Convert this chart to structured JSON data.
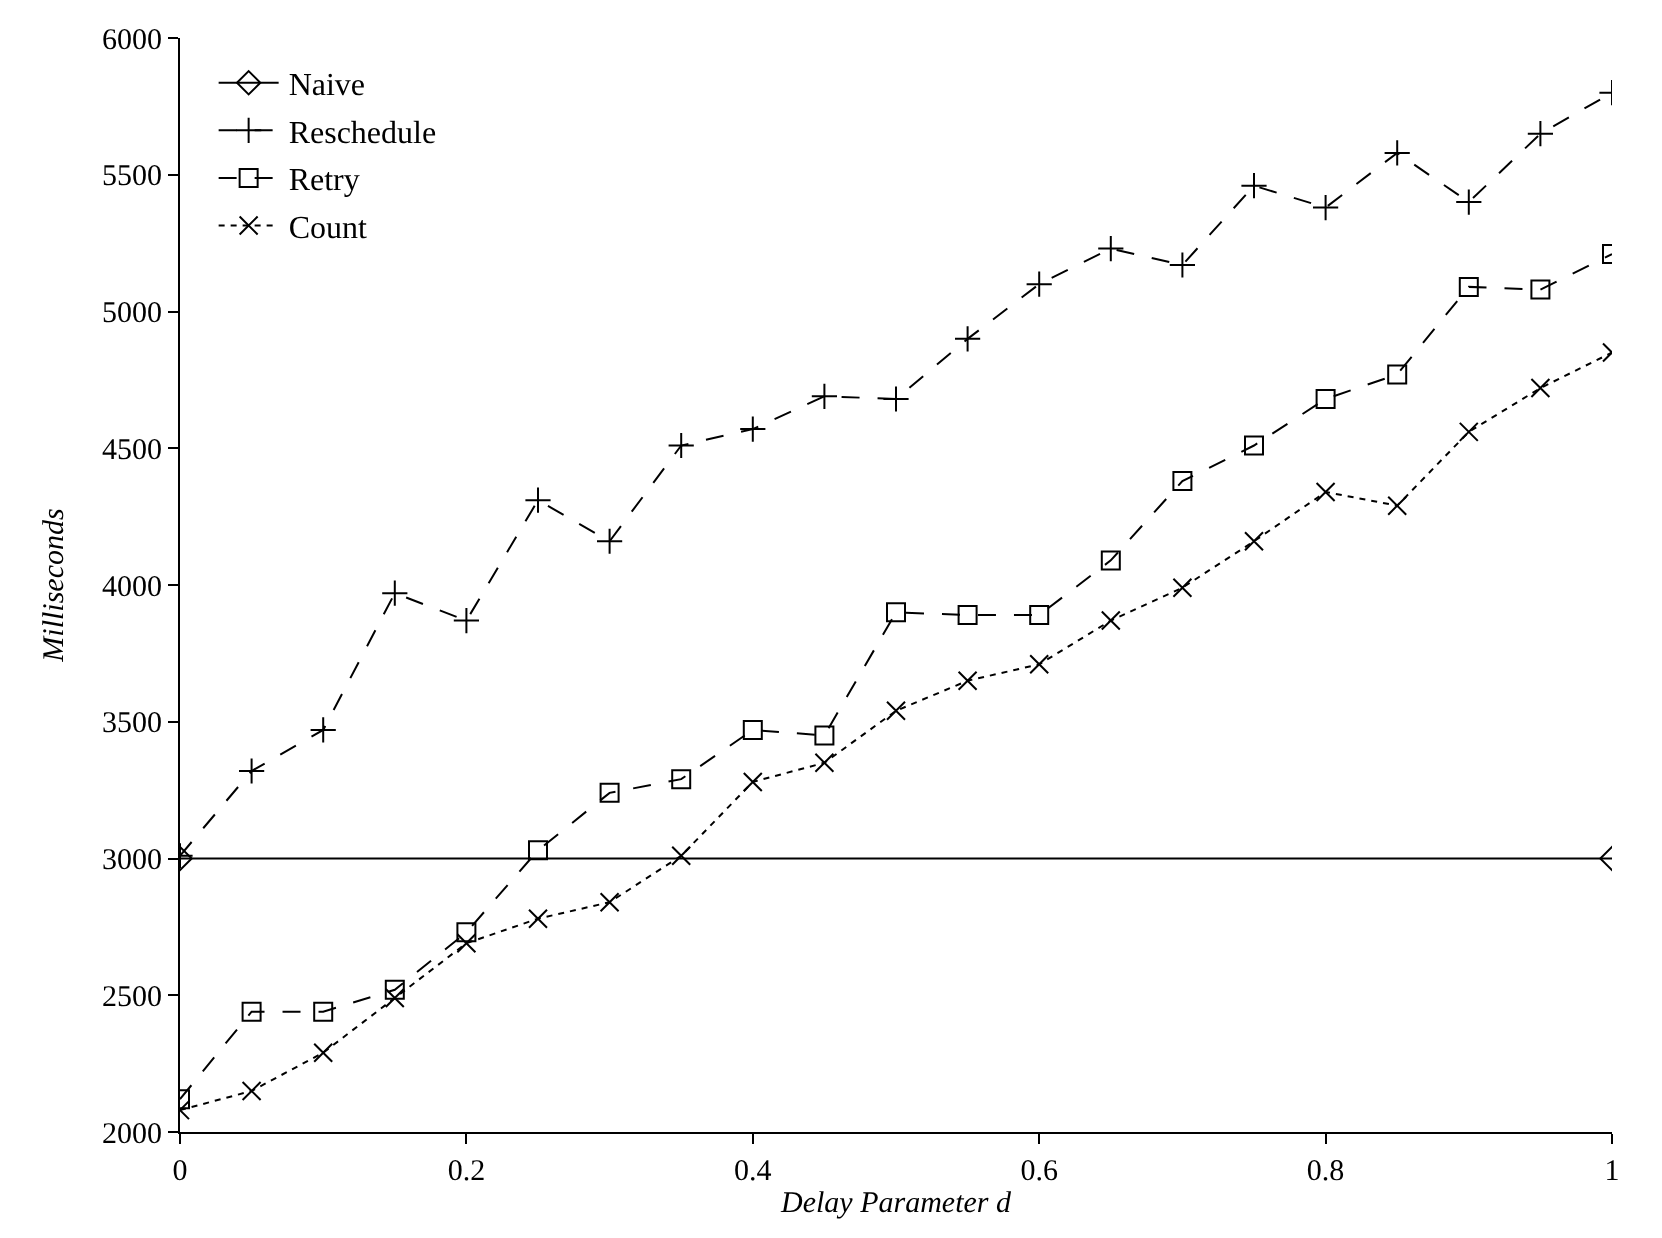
{
  "chart_data": {
    "type": "line",
    "xlabel": "Delay Parameter d",
    "ylabel": "Milliseconds",
    "xlim": [
      0,
      1
    ],
    "xticks": [
      0,
      0.2,
      0.4,
      0.6,
      0.8,
      1
    ],
    "ylim": [
      2000,
      6000
    ],
    "yticks": [
      2000,
      2500,
      3000,
      3500,
      4000,
      4500,
      5000,
      5500,
      6000
    ],
    "legend": "top left",
    "x": [
      0,
      0.05,
      0.1,
      0.15,
      0.2,
      0.25,
      0.3,
      0.35,
      0.4,
      0.45,
      0.5,
      0.55,
      0.6,
      0.65,
      0.7,
      0.75,
      0.8,
      0.85,
      0.9,
      0.95,
      1
    ],
    "series": [
      {
        "name": "Naive",
        "color": "#000000",
        "marker": "diamond",
        "line_style": "solid",
        "x": [
          0,
          1
        ],
        "values": [
          3000,
          3000
        ]
      },
      {
        "name": "Reschedule",
        "color": "#000000",
        "marker": "cross",
        "line_style": "dashed",
        "values": [
          3010,
          3320,
          3470,
          3970,
          3870,
          4310,
          4160,
          4510,
          4570,
          4690,
          4680,
          4900,
          5100,
          5230,
          5170,
          5460,
          5380,
          5580,
          5400,
          5650,
          5800
        ]
      },
      {
        "name": "Retry",
        "color": "#000000",
        "marker": "square",
        "line_style": "dashed",
        "values": [
          2120,
          2440,
          2440,
          2520,
          2730,
          3030,
          3240,
          3290,
          3470,
          3450,
          3900,
          3890,
          3890,
          4090,
          4380,
          4510,
          4680,
          4770,
          5090,
          5080,
          5210
        ]
      },
      {
        "name": "Count",
        "color": "#000000",
        "marker": "x",
        "line_style": "dotted",
        "values": [
          2080,
          2150,
          2290,
          2490,
          2690,
          2780,
          2840,
          3010,
          3280,
          3350,
          3540,
          3650,
          3710,
          3870,
          3990,
          4160,
          4340,
          4290,
          4560,
          4720,
          4850
        ]
      }
    ]
  }
}
